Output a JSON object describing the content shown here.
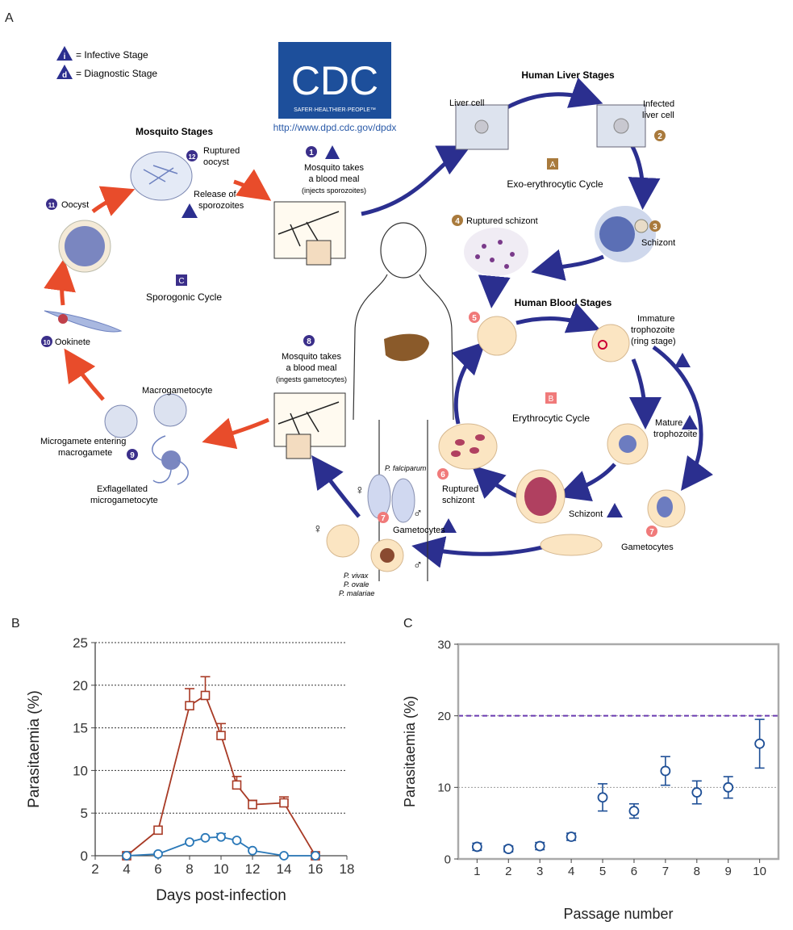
{
  "panels": {
    "a": "A",
    "b": "B",
    "c": "C"
  },
  "lifecycle": {
    "legend": {
      "infective_symbol": "i",
      "infective": "= Infective Stage",
      "diagnostic_symbol": "d",
      "diagnostic": "= Diagnostic Stage"
    },
    "logo": {
      "text": "CDC",
      "tagline": "SAFER·HEALTHIER·PEOPLE™",
      "url": "http://www.dpd.cdc.gov/dpdx"
    },
    "sections": {
      "liver": "Human Liver Stages",
      "blood": "Human Blood Stages",
      "mosquito": "Mosquito Stages"
    },
    "cycles": {
      "exo_letter": "A",
      "exo": "Exo-erythrocytic Cycle",
      "ery_letter": "B",
      "ery": "Erythrocytic Cycle",
      "spo_letter": "C",
      "spo": "Sporogonic Cycle"
    },
    "labels": {
      "n1": "1",
      "s1a": "Mosquito takes",
      "s1b": "a blood meal",
      "s1c": "(injects sporozoites)",
      "liver_cell": "Liver cell",
      "infected_a": "Infected",
      "infected_b": "liver cell",
      "n2": "2",
      "n3": "3",
      "schizont_liver": "Schizont",
      "n4": "4",
      "ruptured_liver": "Ruptured schizont",
      "n5": "5",
      "imm_a": "Immature",
      "imm_b": "trophozoite",
      "imm_c": "(ring stage)",
      "mature_a": "Mature",
      "mature_b": "trophozoite",
      "schizont_blood": "Schizont",
      "n6": "6",
      "rup_blood_a": "Ruptured",
      "rup_blood_b": "schizont",
      "n7": "7",
      "gametocytes": "Gametocytes",
      "gametocytes2": "Gametocytes",
      "pfal": "P. falciparum",
      "pvivax": "P. vivax",
      "povale": "P. ovale",
      "pmal": "P. malariae",
      "female": "♀",
      "male": "♂",
      "n8": "8",
      "s8a": "Mosquito takes",
      "s8b": "a blood meal",
      "s8c": "(ingests gametocytes)",
      "macro": "Macrogametocyte",
      "micro_a": "Microgamete entering",
      "micro_b": "macrogamete",
      "n9": "9",
      "exfl_a": "Exflagellated",
      "exfl_b": "microgametocyte",
      "n10": "10",
      "ookinete": "Ookinete",
      "n11": "11",
      "oocyst": "Oocyst",
      "n12": "12",
      "rupt_a": "Ruptured",
      "rupt_b": "oocyst",
      "rel_a": "Release of",
      "rel_b": "sporozoites"
    }
  },
  "chart_data": [
    {
      "type": "line",
      "panel": "B",
      "xlabel": "Days post-infection",
      "ylabel": "Parasitaemia (%)",
      "xlim": [
        2,
        18
      ],
      "ylim": [
        0,
        25
      ],
      "xticks": [
        2,
        4,
        6,
        8,
        10,
        12,
        14,
        16,
        18
      ],
      "yticks": [
        0,
        5,
        10,
        15,
        20,
        25
      ],
      "grid": "horizontal dotted",
      "series": [
        {
          "color": "#a83a25",
          "marker": "square",
          "x": [
            4,
            6,
            8,
            9,
            10,
            11,
            12,
            14,
            16
          ],
          "y": [
            0,
            3.0,
            17.6,
            18.8,
            14.1,
            8.3,
            6.0,
            6.2,
            0
          ],
          "err": [
            0,
            0,
            2.0,
            2.2,
            1.4,
            1.0,
            0.5,
            0.7,
            0
          ]
        },
        {
          "color": "#2a78b8",
          "marker": "circle",
          "x": [
            4,
            6,
            8,
            9,
            10,
            11,
            12,
            14,
            16
          ],
          "y": [
            0,
            0.2,
            1.6,
            2.1,
            2.2,
            1.8,
            0.6,
            0.0,
            0
          ],
          "err": [
            0,
            0,
            0,
            0,
            0.4,
            0,
            0,
            0,
            0
          ]
        }
      ]
    },
    {
      "type": "scatter",
      "panel": "C",
      "xlabel": "Passage number",
      "ylabel": "Parasitaemia (%)",
      "xlim": [
        0.4,
        10.6
      ],
      "ylim": [
        0,
        30
      ],
      "xticks": [
        1,
        2,
        3,
        4,
        5,
        6,
        7,
        8,
        9,
        10
      ],
      "yticks": [
        0,
        10,
        20,
        30
      ],
      "threshold": 20,
      "grid": "horizontal dotted",
      "series": [
        {
          "color": "#1e4f96",
          "marker": "circle",
          "x": [
            1,
            2,
            3,
            4,
            5,
            6,
            7,
            8,
            9,
            10
          ],
          "y": [
            1.7,
            1.4,
            1.8,
            3.1,
            8.6,
            6.7,
            12.3,
            9.3,
            10.0,
            16.1
          ],
          "err": [
            0.5,
            0.4,
            0.5,
            0.5,
            1.9,
            1.0,
            2.0,
            1.6,
            1.5,
            3.4
          ]
        }
      ]
    }
  ]
}
